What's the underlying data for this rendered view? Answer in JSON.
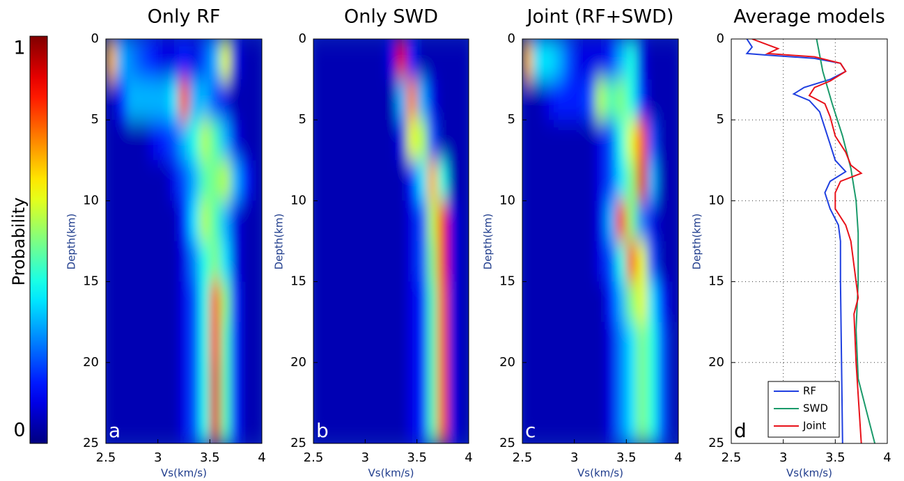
{
  "chart_data": [
    {
      "type": "colorbar",
      "label": "Probability",
      "colormap": "jet",
      "lim": [
        0,
        1
      ],
      "ticks": [
        0,
        1
      ]
    },
    {
      "type": "heatmap",
      "title": "Only RF",
      "panel_label": "a",
      "xlabel": "Vs(km/s)",
      "ylabel": "Depth(km)",
      "colormap": "jet",
      "xlim": [
        2.5,
        4
      ],
      "xticks": [
        2.5,
        3,
        3.5,
        4
      ],
      "ylim": [
        0,
        25
      ],
      "yticks": [
        0,
        5,
        10,
        15,
        20,
        25
      ],
      "y_reversed": true,
      "xbins": [
        2.5,
        2.6,
        2.7,
        2.8,
        2.9,
        3,
        3.1,
        3.2,
        3.3,
        3.4,
        3.5,
        3.6,
        3.7,
        3.8,
        3.9,
        4
      ],
      "ybins": [
        0,
        2.5,
        5,
        7.5,
        10,
        12.5,
        15,
        17.5,
        20,
        22.5,
        25
      ],
      "z": [
        [
          0.7,
          0.3,
          0.25,
          0.2,
          0.15,
          0.1,
          0.1,
          0.15,
          0.1,
          0.2,
          0.3,
          0.6,
          0.1,
          0.05,
          0.05
        ],
        [
          0.05,
          0.15,
          0.3,
          0.3,
          0.3,
          0.3,
          0.35,
          0.8,
          0.3,
          0.3,
          0.2,
          0.1,
          0.05,
          0.05,
          0.05
        ],
        [
          0.05,
          0.05,
          0.05,
          0.05,
          0.1,
          0.15,
          0.2,
          0.3,
          0.4,
          0.55,
          0.45,
          0.3,
          0.1,
          0.05,
          0.05
        ],
        [
          0.05,
          0.05,
          0.05,
          0.05,
          0.05,
          0.05,
          0.1,
          0.2,
          0.3,
          0.45,
          0.5,
          0.55,
          0.3,
          0.15,
          0.05
        ],
        [
          0.05,
          0.05,
          0.05,
          0.05,
          0.05,
          0.05,
          0.05,
          0.15,
          0.35,
          0.55,
          0.45,
          0.3,
          0.1,
          0.05,
          0.05
        ],
        [
          0.05,
          0.05,
          0.05,
          0.05,
          0.05,
          0.05,
          0.05,
          0.1,
          0.25,
          0.4,
          0.5,
          0.35,
          0.1,
          0.05,
          0.05
        ],
        [
          0.05,
          0.05,
          0.05,
          0.05,
          0.05,
          0.05,
          0.05,
          0.1,
          0.2,
          0.4,
          0.8,
          0.5,
          0.15,
          0.05,
          0.05
        ],
        [
          0.05,
          0.05,
          0.05,
          0.05,
          0.05,
          0.05,
          0.05,
          0.1,
          0.2,
          0.4,
          0.85,
          0.45,
          0.15,
          0.05,
          0.05
        ],
        [
          0.05,
          0.05,
          0.05,
          0.05,
          0.05,
          0.05,
          0.05,
          0.1,
          0.2,
          0.4,
          0.9,
          0.45,
          0.15,
          0.05,
          0.05
        ],
        [
          0.05,
          0.05,
          0.05,
          0.05,
          0.05,
          0.05,
          0.05,
          0.1,
          0.2,
          0.4,
          0.9,
          0.45,
          0.15,
          0.05,
          0.05
        ]
      ]
    },
    {
      "type": "heatmap",
      "title": "Only SWD",
      "panel_label": "b",
      "xlabel": "Vs(km/s)",
      "ylabel": "Depth(km)",
      "colormap": "jet",
      "xlim": [
        2.5,
        4
      ],
      "xticks": [
        2.5,
        3,
        3.5,
        4
      ],
      "ylim": [
        0,
        25
      ],
      "yticks": [
        0,
        5,
        10,
        15,
        20,
        25
      ],
      "y_reversed": true,
      "xbins": [
        2.5,
        2.6,
        2.7,
        2.8,
        2.9,
        3,
        3.1,
        3.2,
        3.3,
        3.4,
        3.5,
        3.6,
        3.7,
        3.8,
        3.9,
        4
      ],
      "ybins": [
        0,
        2.5,
        5,
        7.5,
        10,
        12.5,
        15,
        17.5,
        20,
        22.5,
        25
      ],
      "z": [
        [
          0.05,
          0.05,
          0.05,
          0.05,
          0.05,
          0.05,
          0.05,
          0.1,
          0.9,
          0.15,
          0.05,
          0.05,
          0.05,
          0.05,
          0.05
        ],
        [
          0.05,
          0.05,
          0.05,
          0.05,
          0.05,
          0.05,
          0.05,
          0.05,
          0.3,
          0.75,
          0.3,
          0.1,
          0.05,
          0.05,
          0.05
        ],
        [
          0.05,
          0.05,
          0.05,
          0.05,
          0.05,
          0.05,
          0.05,
          0.05,
          0.1,
          0.6,
          0.55,
          0.2,
          0.05,
          0.05,
          0.05
        ],
        [
          0.05,
          0.05,
          0.05,
          0.05,
          0.05,
          0.05,
          0.05,
          0.05,
          0.05,
          0.15,
          0.35,
          0.7,
          0.4,
          0.05,
          0.05
        ],
        [
          0.05,
          0.05,
          0.05,
          0.05,
          0.05,
          0.05,
          0.05,
          0.05,
          0.05,
          0.1,
          0.2,
          0.55,
          0.85,
          0.1,
          0.05
        ],
        [
          0.05,
          0.05,
          0.05,
          0.05,
          0.05,
          0.05,
          0.05,
          0.05,
          0.05,
          0.1,
          0.2,
          0.5,
          0.85,
          0.1,
          0.05
        ],
        [
          0.05,
          0.05,
          0.05,
          0.05,
          0.05,
          0.05,
          0.05,
          0.05,
          0.05,
          0.1,
          0.15,
          0.45,
          0.8,
          0.1,
          0.05
        ],
        [
          0.05,
          0.05,
          0.05,
          0.05,
          0.05,
          0.05,
          0.05,
          0.05,
          0.05,
          0.1,
          0.15,
          0.45,
          0.8,
          0.1,
          0.05
        ],
        [
          0.05,
          0.05,
          0.05,
          0.05,
          0.05,
          0.05,
          0.05,
          0.05,
          0.05,
          0.1,
          0.15,
          0.45,
          0.8,
          0.1,
          0.05
        ],
        [
          0.05,
          0.05,
          0.05,
          0.05,
          0.05,
          0.05,
          0.05,
          0.05,
          0.05,
          0.1,
          0.15,
          0.45,
          0.8,
          0.1,
          0.05
        ]
      ]
    },
    {
      "type": "heatmap",
      "title": "Joint (RF+SWD)",
      "panel_label": "c",
      "xlabel": "Vs(km/s)",
      "ylabel": "Depth(km)",
      "colormap": "jet",
      "xlim": [
        2.5,
        4
      ],
      "xticks": [
        2.5,
        3,
        3.5,
        4
      ],
      "ylim": [
        0,
        25
      ],
      "yticks": [
        0,
        5,
        10,
        15,
        20,
        25
      ],
      "y_reversed": true,
      "xbins": [
        2.5,
        2.6,
        2.7,
        2.8,
        2.9,
        3,
        3.1,
        3.2,
        3.3,
        3.4,
        3.5,
        3.6,
        3.7,
        3.8,
        3.9,
        4
      ],
      "ybins": [
        0,
        2.5,
        5,
        7.5,
        10,
        12.5,
        15,
        17.5,
        20,
        22.5,
        25
      ],
      "z": [
        [
          0.7,
          0.35,
          0.35,
          0.3,
          0.2,
          0.1,
          0.1,
          0.1,
          0.15,
          0.3,
          0.4,
          0.1,
          0.05,
          0.05,
          0.05
        ],
        [
          0.05,
          0.05,
          0.1,
          0.15,
          0.15,
          0.15,
          0.2,
          0.55,
          0.45,
          0.5,
          0.4,
          0.15,
          0.05,
          0.05,
          0.05
        ],
        [
          0.05,
          0.05,
          0.05,
          0.05,
          0.05,
          0.05,
          0.05,
          0.1,
          0.2,
          0.4,
          0.6,
          0.8,
          0.2,
          0.05,
          0.05
        ],
        [
          0.05,
          0.05,
          0.05,
          0.05,
          0.05,
          0.05,
          0.05,
          0.1,
          0.2,
          0.35,
          0.5,
          0.9,
          0.3,
          0.05,
          0.05
        ],
        [
          0.05,
          0.05,
          0.05,
          0.05,
          0.05,
          0.05,
          0.05,
          0.1,
          0.3,
          0.85,
          0.5,
          0.25,
          0.1,
          0.05,
          0.05
        ],
        [
          0.05,
          0.05,
          0.05,
          0.05,
          0.05,
          0.05,
          0.05,
          0.1,
          0.2,
          0.4,
          0.8,
          0.6,
          0.2,
          0.05,
          0.05
        ],
        [
          0.05,
          0.05,
          0.05,
          0.05,
          0.05,
          0.05,
          0.05,
          0.05,
          0.15,
          0.3,
          0.5,
          0.6,
          0.35,
          0.15,
          0.05
        ],
        [
          0.05,
          0.05,
          0.05,
          0.05,
          0.05,
          0.05,
          0.05,
          0.05,
          0.1,
          0.25,
          0.35,
          0.5,
          0.4,
          0.2,
          0.05
        ],
        [
          0.05,
          0.05,
          0.05,
          0.05,
          0.05,
          0.05,
          0.05,
          0.05,
          0.1,
          0.25,
          0.35,
          0.5,
          0.4,
          0.2,
          0.05
        ],
        [
          0.05,
          0.05,
          0.05,
          0.05,
          0.05,
          0.05,
          0.05,
          0.05,
          0.1,
          0.25,
          0.35,
          0.5,
          0.4,
          0.2,
          0.05
        ]
      ]
    },
    {
      "type": "line",
      "title": "Average models",
      "panel_label": "d",
      "xlabel": "Vs(km/s)",
      "ylabel": "Depth(km)",
      "xlim": [
        2.5,
        4
      ],
      "xticks": [
        2.5,
        3,
        3.5,
        4
      ],
      "ylim": [
        0,
        25
      ],
      "yticks": [
        0,
        5,
        10,
        15,
        20,
        25
      ],
      "y_reversed": true,
      "grid": true,
      "legend": "lower right",
      "series": [
        {
          "name": "RF",
          "color": "#1f3fe0",
          "x": [
            2.65,
            2.7,
            2.65,
            2.85,
            3.3,
            3.55,
            3.6,
            3.45,
            3.2,
            3.1,
            3.25,
            3.35,
            3.4,
            3.45,
            3.5,
            3.6,
            3.45,
            3.4,
            3.45,
            3.53,
            3.55,
            3.55,
            3.56,
            3.57
          ],
          "y": [
            0,
            0.5,
            0.9,
            1.0,
            1.2,
            1.5,
            2.0,
            2.5,
            3.0,
            3.4,
            3.8,
            4.5,
            5.5,
            6.5,
            7.5,
            8.2,
            8.8,
            9.5,
            10.5,
            11.5,
            12.5,
            15,
            20,
            25
          ]
        },
        {
          "name": "SWD",
          "color": "#1a9a6a",
          "x": [
            3.32,
            3.38,
            3.47,
            3.57,
            3.65,
            3.7,
            3.72,
            3.72,
            3.7,
            3.72,
            3.8,
            3.88
          ],
          "y": [
            0,
            2,
            4,
            6,
            8,
            10,
            12,
            15,
            18,
            21,
            23,
            25
          ]
        },
        {
          "name": "Joint",
          "color": "#e8121a",
          "x": [
            2.7,
            2.95,
            2.85,
            3.3,
            3.55,
            3.6,
            3.45,
            3.3,
            3.25,
            3.4,
            3.45,
            3.5,
            3.6,
            3.65,
            3.75,
            3.55,
            3.5,
            3.5,
            3.6,
            3.65,
            3.7,
            3.72,
            3.68,
            3.7,
            3.73,
            3.75
          ],
          "y": [
            0,
            0.6,
            0.9,
            1.1,
            1.5,
            2.0,
            2.6,
            3.0,
            3.5,
            4.0,
            4.8,
            6.0,
            7.0,
            7.8,
            8.3,
            8.8,
            9.5,
            10.5,
            11.5,
            12.5,
            15,
            16,
            17,
            20,
            23,
            25
          ]
        }
      ]
    }
  ]
}
